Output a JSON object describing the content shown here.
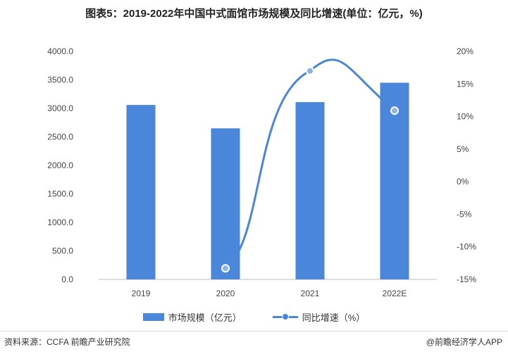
{
  "title": "图表5：2019-2022年中国中式面馆市场规模及同比增速(单位：亿元，%)",
  "source": "资料来源：CCFA 前瞻产业研究院",
  "brand": "@前瞻经济学人APP",
  "colors": {
    "bar": "#4a86d9",
    "line": "#4a86d9"
  },
  "chart_data": {
    "type": "bar",
    "categories": [
      "2019",
      "2020",
      "2021",
      "2022E"
    ],
    "series": [
      {
        "name": "市场规模（亿元）",
        "type": "bar",
        "axis": "left",
        "values": [
          3060,
          2650,
          3110,
          3450
        ]
      },
      {
        "name": "同比增速（%）",
        "type": "line",
        "axis": "right",
        "values": [
          null,
          -13.3,
          17.0,
          10.9
        ]
      }
    ],
    "y_left": {
      "ylim": [
        0,
        4000
      ],
      "ticks": [
        "0.0",
        "500.0",
        "1000.0",
        "1500.0",
        "2000.0",
        "2500.0",
        "3000.0",
        "3500.0",
        "4000.0"
      ]
    },
    "y_right": {
      "ylim": [
        -15,
        20
      ],
      "ticks": [
        "-15%",
        "-10%",
        "-5%",
        "0%",
        "5%",
        "10%",
        "15%",
        "20%"
      ]
    },
    "legend": "bottom",
    "grid": false
  }
}
